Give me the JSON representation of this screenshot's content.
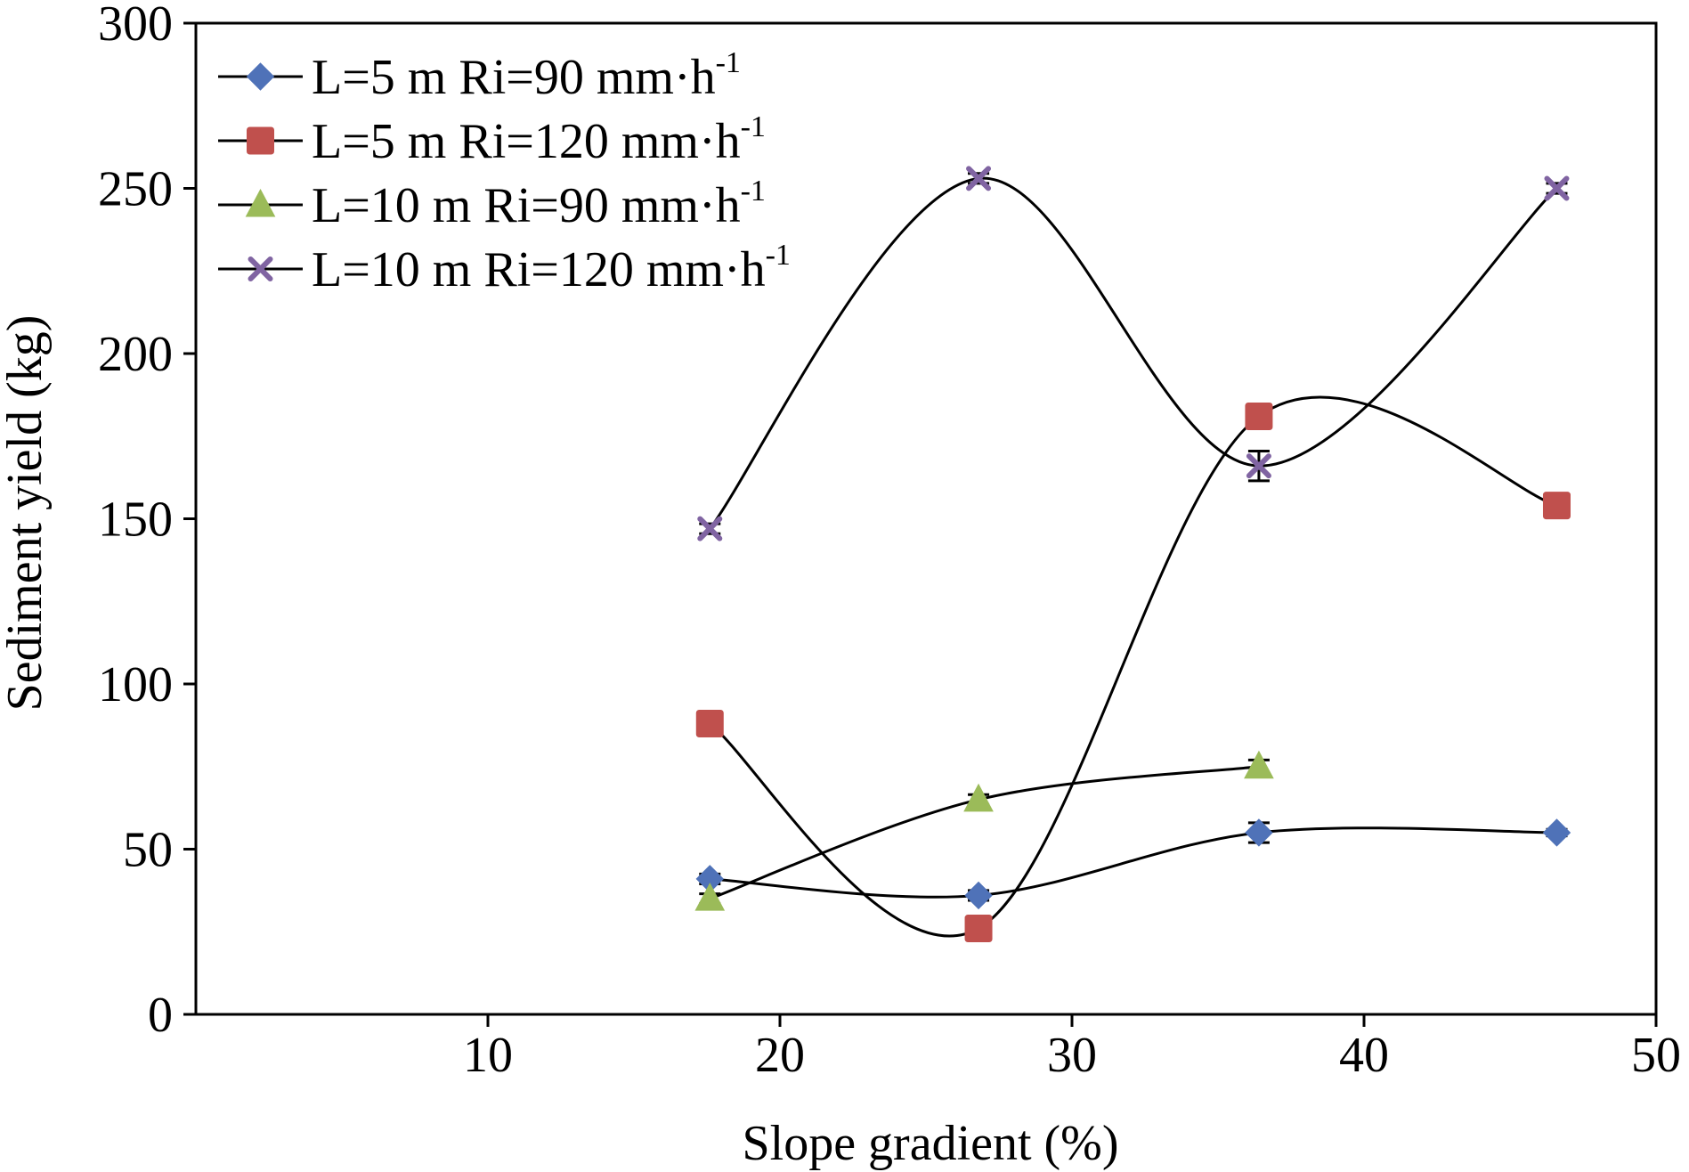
{
  "chart_data": {
    "type": "line",
    "title": "",
    "xlabel": "Slope gradient (%)",
    "ylabel": "Sediment yield (kg)",
    "xlim": [
      0,
      50
    ],
    "ylim": [
      0,
      300
    ],
    "xticks": [
      10,
      20,
      30,
      40,
      50
    ],
    "yticks": [
      0,
      50,
      100,
      150,
      200,
      250,
      300
    ],
    "grid": false,
    "legend_position": "top-left",
    "line_style": "smooth",
    "series": [
      {
        "name": "L=5 m Ri=90 mm·h",
        "name_superscript": "-1",
        "marker": "diamond",
        "color": "#4f72b8",
        "x": [
          17.6,
          26.8,
          36.4,
          46.6
        ],
        "y": [
          41,
          36,
          55,
          55
        ],
        "err": [
          1.5,
          1.5,
          3,
          1
        ]
      },
      {
        "name": "L=5 m Ri=120 mm·h",
        "name_superscript": "-1",
        "marker": "square",
        "color": "#c0504d",
        "x": [
          17.6,
          26.8,
          36.4,
          46.6
        ],
        "y": [
          88,
          26,
          181,
          154
        ],
        "err": [
          1,
          1,
          1,
          1
        ]
      },
      {
        "name": "L=10 m Ri=90 mm·h",
        "name_superscript": "-1",
        "marker": "triangle",
        "color": "#9bbb59",
        "x": [
          17.6,
          26.8,
          36.4
        ],
        "y": [
          35,
          65,
          75
        ],
        "err": [
          1.5,
          1.5,
          2
        ]
      },
      {
        "name": "L=10 m Ri=120 mm·h",
        "name_superscript": "-1",
        "marker": "x",
        "color": "#8064a2",
        "x": [
          17.6,
          26.8,
          36.4,
          46.6
        ],
        "y": [
          147,
          253,
          166,
          250
        ],
        "err": [
          1.5,
          1.5,
          4.5,
          1.5
        ]
      }
    ]
  }
}
